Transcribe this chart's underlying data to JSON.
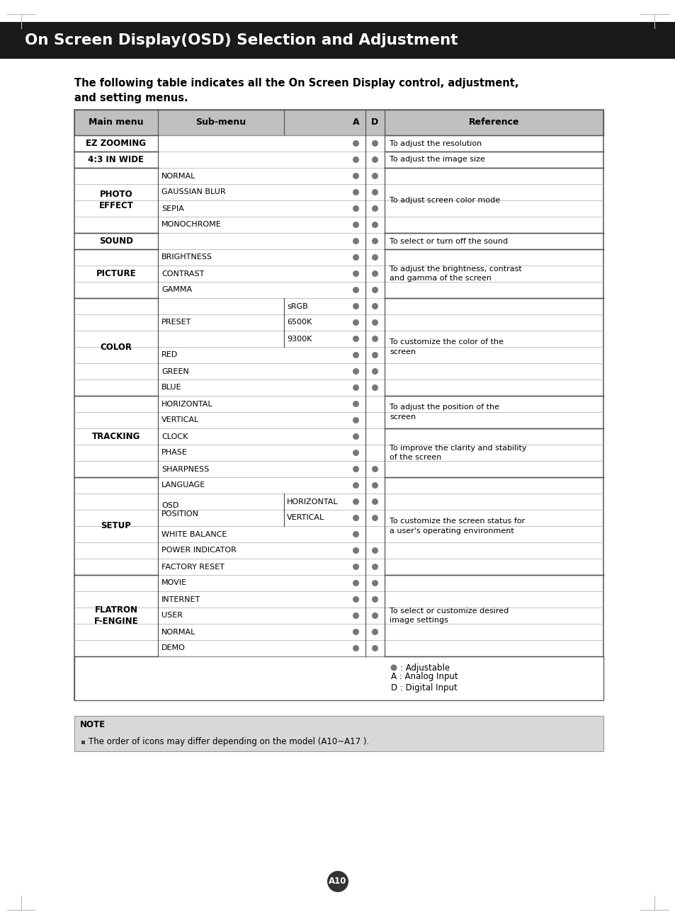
{
  "title": "On Screen Display(OSD) Selection and Adjustment",
  "subtitle": "The following table indicates all the On Screen Display control, adjustment,\nand setting menus.",
  "header_bg": "#1a1a1a",
  "header_text_color": "#ffffff",
  "page_bg": "#ffffff",
  "page_label": "A10",
  "note_bg": "#d8d8d8",
  "note_text": "The order of icons may differ depending on the model (A10~A17 ).",
  "legend_dot_color": "#777777",
  "table_border_color": "#555555",
  "table_inner_color": "#aaaaaa",
  "dot_color": "#777777",
  "rows": [
    {
      "main": "EZ ZOOMING",
      "sub": "",
      "sub2": "",
      "A": true,
      "D": true,
      "ref": "To adjust the resolution"
    },
    {
      "main": "4:3 IN WIDE",
      "sub": "",
      "sub2": "",
      "A": true,
      "D": true,
      "ref": "To adjust the image size"
    },
    {
      "main": "PHOTO\nEFFECT",
      "sub": "NORMAL",
      "sub2": "",
      "A": true,
      "D": true,
      "ref": ""
    },
    {
      "main": "",
      "sub": "GAUSSIAN BLUR",
      "sub2": "",
      "A": true,
      "D": true,
      "ref": "To adjust screen color mode"
    },
    {
      "main": "",
      "sub": "SEPIA",
      "sub2": "",
      "A": true,
      "D": true,
      "ref": ""
    },
    {
      "main": "",
      "sub": "MONOCHROME",
      "sub2": "",
      "A": true,
      "D": true,
      "ref": ""
    },
    {
      "main": "SOUND",
      "sub": "",
      "sub2": "",
      "A": true,
      "D": true,
      "ref": "To select or turn off the sound"
    },
    {
      "main": "PICTURE",
      "sub": "BRIGHTNESS",
      "sub2": "",
      "A": true,
      "D": true,
      "ref": ""
    },
    {
      "main": "",
      "sub": "CONTRAST",
      "sub2": "",
      "A": true,
      "D": true,
      "ref": "To adjust the brightness, contrast\nand gamma of the screen"
    },
    {
      "main": "",
      "sub": "GAMMA",
      "sub2": "",
      "A": true,
      "D": true,
      "ref": ""
    },
    {
      "main": "COLOR",
      "sub": "PRESET",
      "sub2": "sRGB",
      "A": true,
      "D": true,
      "ref": ""
    },
    {
      "main": "",
      "sub": "",
      "sub2": "6500K",
      "A": true,
      "D": true,
      "ref": "To customize the color of the\nscreen"
    },
    {
      "main": "",
      "sub": "",
      "sub2": "9300K",
      "A": true,
      "D": true,
      "ref": ""
    },
    {
      "main": "",
      "sub": "RED",
      "sub2": "",
      "A": true,
      "D": true,
      "ref": ""
    },
    {
      "main": "",
      "sub": "GREEN",
      "sub2": "",
      "A": true,
      "D": true,
      "ref": ""
    },
    {
      "main": "",
      "sub": "BLUE",
      "sub2": "",
      "A": true,
      "D": true,
      "ref": ""
    },
    {
      "main": "TRACKING",
      "sub": "HORIZONTAL",
      "sub2": "",
      "A": true,
      "D": false,
      "ref": "To adjust the position of the\nscreen"
    },
    {
      "main": "",
      "sub": "VERTICAL",
      "sub2": "",
      "A": true,
      "D": false,
      "ref": ""
    },
    {
      "main": "",
      "sub": "CLOCK",
      "sub2": "",
      "A": true,
      "D": false,
      "ref": ""
    },
    {
      "main": "",
      "sub": "PHASE",
      "sub2": "",
      "A": true,
      "D": false,
      "ref": "To improve the clarity and stability\nof the screen"
    },
    {
      "main": "",
      "sub": "SHARPNESS",
      "sub2": "",
      "A": true,
      "D": true,
      "ref": ""
    },
    {
      "main": "SETUP",
      "sub": "LANGUAGE",
      "sub2": "",
      "A": true,
      "D": true,
      "ref": ""
    },
    {
      "main": "",
      "sub": "OSD\nPOSITION",
      "sub2": "HORIZONTAL",
      "A": true,
      "D": true,
      "ref": ""
    },
    {
      "main": "",
      "sub": "",
      "sub2": "VERTICAL",
      "A": true,
      "D": true,
      "ref": "To customize the screen status for\na user's operating environment"
    },
    {
      "main": "",
      "sub": "WHITE BALANCE",
      "sub2": "",
      "A": true,
      "D": false,
      "ref": ""
    },
    {
      "main": "",
      "sub": "POWER INDICATOR",
      "sub2": "",
      "A": true,
      "D": true,
      "ref": ""
    },
    {
      "main": "",
      "sub": "FACTORY RESET",
      "sub2": "",
      "A": true,
      "D": true,
      "ref": ""
    },
    {
      "main": "FLATRON\nF-ENGINE",
      "sub": "MOVIE",
      "sub2": "",
      "A": true,
      "D": true,
      "ref": ""
    },
    {
      "main": "",
      "sub": "INTERNET",
      "sub2": "",
      "A": true,
      "D": true,
      "ref": "To select or customize desired\nimage settings"
    },
    {
      "main": "",
      "sub": "USER",
      "sub2": "",
      "A": true,
      "D": true,
      "ref": ""
    },
    {
      "main": "",
      "sub": "NORMAL",
      "sub2": "",
      "A": true,
      "D": true,
      "ref": ""
    },
    {
      "main": "",
      "sub": "DEMO",
      "sub2": "",
      "A": true,
      "D": true,
      "ref": ""
    }
  ],
  "ref_groups": [
    {
      "start": 0,
      "end": 1,
      "text": "To adjust the resolution"
    },
    {
      "start": 1,
      "end": 2,
      "text": "To adjust the image size"
    },
    {
      "start": 2,
      "end": 6,
      "text": "To adjust screen color mode"
    },
    {
      "start": 6,
      "end": 7,
      "text": "To select or turn off the sound"
    },
    {
      "start": 7,
      "end": 10,
      "text": "To adjust the brightness, contrast\nand gamma of the screen"
    },
    {
      "start": 10,
      "end": 16,
      "text": "To customize the color of the\nscreen"
    },
    {
      "start": 16,
      "end": 18,
      "text": "To adjust the position of the\nscreen"
    },
    {
      "start": 18,
      "end": 21,
      "text": "To improve the clarity and stability\nof the screen"
    },
    {
      "start": 21,
      "end": 27,
      "text": "To customize the screen status for\na user's operating environment"
    },
    {
      "start": 27,
      "end": 32,
      "text": "To select or customize desired\nimage settings"
    }
  ],
  "main_groups": [
    {
      "start": 0,
      "end": 1,
      "text": "EZ ZOOMING"
    },
    {
      "start": 1,
      "end": 2,
      "text": "4:3 IN WIDE"
    },
    {
      "start": 2,
      "end": 6,
      "text": "PHOTO\nEFFECT"
    },
    {
      "start": 6,
      "end": 7,
      "text": "SOUND"
    },
    {
      "start": 7,
      "end": 10,
      "text": "PICTURE"
    },
    {
      "start": 10,
      "end": 16,
      "text": "COLOR"
    },
    {
      "start": 16,
      "end": 21,
      "text": "TRACKING"
    },
    {
      "start": 21,
      "end": 27,
      "text": "SETUP"
    },
    {
      "start": 27,
      "end": 32,
      "text": "FLATRON\nF-ENGINE"
    }
  ]
}
